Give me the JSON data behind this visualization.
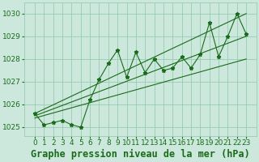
{
  "title": "Graphe pression niveau de la mer (hPa)",
  "x_values": [
    0,
    1,
    2,
    3,
    4,
    5,
    6,
    7,
    8,
    9,
    10,
    11,
    12,
    13,
    14,
    15,
    16,
    17,
    18,
    19,
    20,
    21,
    22,
    23
  ],
  "y_main": [
    1025.6,
    1025.1,
    1025.2,
    1025.3,
    1025.1,
    1025.0,
    1026.2,
    1027.1,
    1027.8,
    1028.4,
    1027.2,
    1028.3,
    1027.4,
    1028.0,
    1027.5,
    1027.6,
    1028.1,
    1027.6,
    1028.2,
    1029.6,
    1028.1,
    1029.0,
    1030.0,
    1029.1
  ],
  "trend_lines": [
    {
      "x0": 0,
      "y0": 1025.6,
      "x1": 23,
      "y1": 1030.0
    },
    {
      "x0": 0,
      "y0": 1025.5,
      "x1": 23,
      "y1": 1029.0
    },
    {
      "x0": 0,
      "y0": 1025.4,
      "x1": 23,
      "y1": 1028.0
    }
  ],
  "ylim": [
    1024.6,
    1030.5
  ],
  "yticks": [
    1025,
    1026,
    1027,
    1028,
    1029,
    1030
  ],
  "xticks": [
    0,
    1,
    2,
    3,
    4,
    5,
    6,
    7,
    8,
    9,
    10,
    11,
    12,
    13,
    14,
    15,
    16,
    17,
    18,
    19,
    20,
    21,
    22,
    23
  ],
  "line_color": "#1a6b1a",
  "marker_color": "#1a6b1a",
  "bg_color": "#cce8dc",
  "grid_color": "#99ccb3",
  "text_color": "#1a6b1a",
  "title_fontsize": 8.5,
  "tick_fontsize": 6.5,
  "marker": "*",
  "markersize": 3.5,
  "linewidth": 0.8
}
